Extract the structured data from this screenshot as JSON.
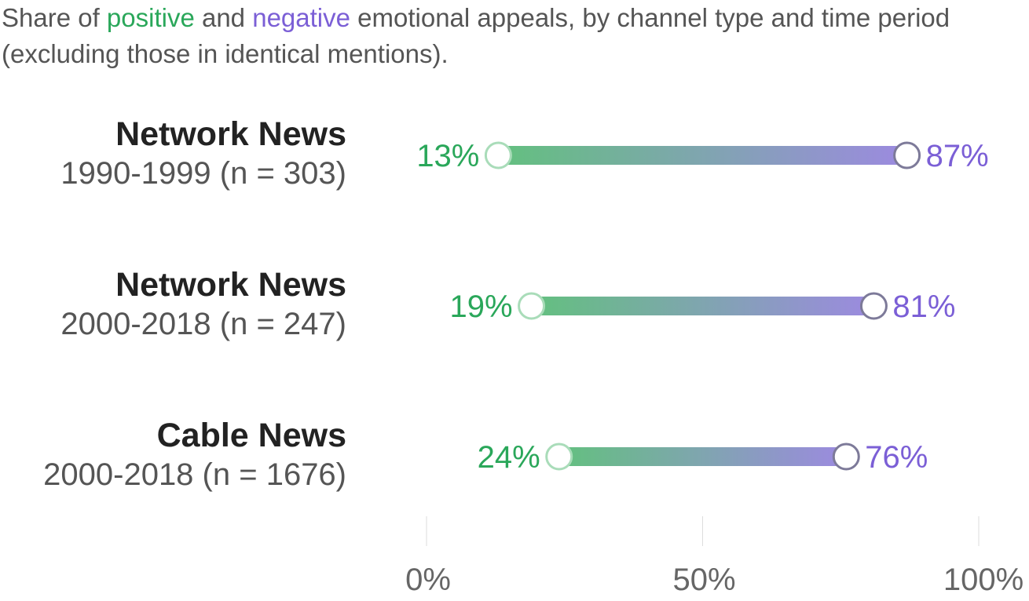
{
  "title": {
    "part1": "Share of ",
    "positive": "positive",
    "part2": " and ",
    "negative": "negative",
    "part3": " emotional appeals, by channel type and time period (excluding those in identical mentions)."
  },
  "colors": {
    "positive": "#2aa75a",
    "negative": "#7b5fd6",
    "gradient_start": "#63c07f",
    "gradient_end": "#9c8ae0"
  },
  "chart_data": {
    "type": "dumbbell",
    "xlim": [
      0,
      100
    ],
    "x_ticks": [
      "0%",
      "50%",
      "100%"
    ],
    "x_tick_values": [
      0,
      50,
      100
    ],
    "grid": true,
    "series_labels": [
      "positive",
      "negative"
    ],
    "rows": [
      {
        "name": "Network News",
        "sub": "1990-1999 (n = 303)",
        "positive": 13,
        "negative": 87,
        "positive_label": "13%",
        "negative_label": "87%"
      },
      {
        "name": "Network News",
        "sub": "2000-2018 (n = 247)",
        "positive": 19,
        "negative": 81,
        "positive_label": "19%",
        "negative_label": "81%"
      },
      {
        "name": "Cable News",
        "sub": "2000-2018 (n = 1676)",
        "positive": 24,
        "negative": 76,
        "positive_label": "24%",
        "negative_label": "76%"
      }
    ]
  }
}
